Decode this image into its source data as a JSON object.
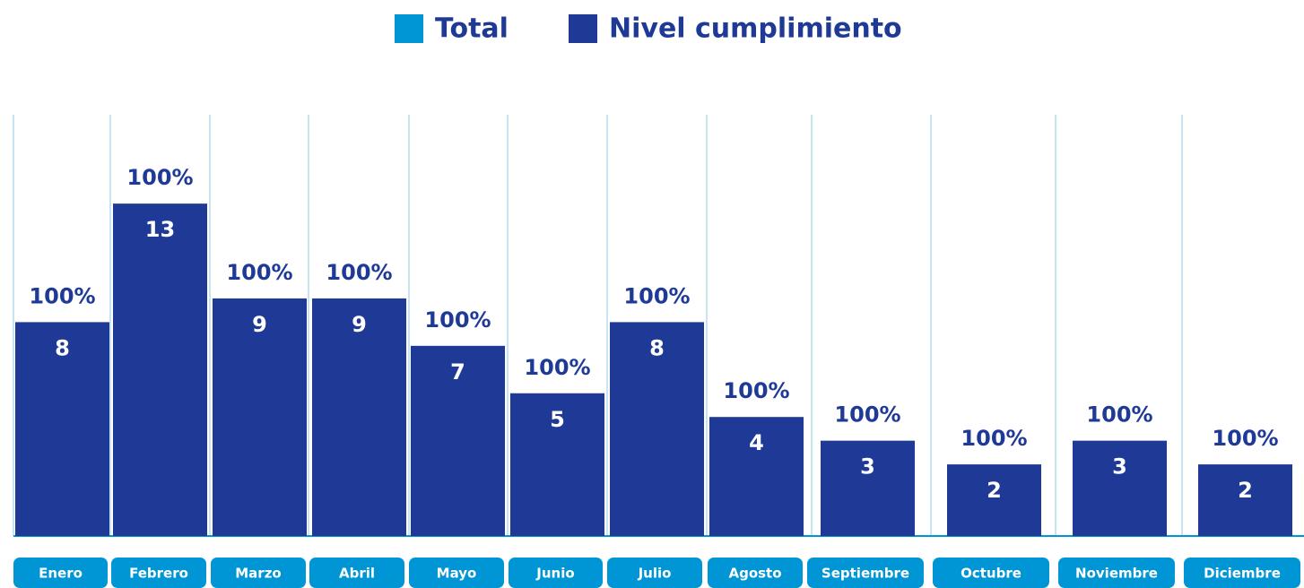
{
  "chart_data": {
    "type": "bar",
    "categories": [
      "Enero",
      "Febrero",
      "Marzo",
      "Abril",
      "Mayo",
      "Junio",
      "Julio",
      "Agosto",
      "Septiembre",
      "Octubre",
      "Noviembre",
      "Diciembre"
    ],
    "series": [
      {
        "name": "Total",
        "color": "#0095d5",
        "values": [
          8,
          13,
          9,
          9,
          7,
          5,
          8,
          4,
          3,
          2,
          3,
          2
        ]
      },
      {
        "name": "Nivel cumplimiento",
        "color": "#1e3a96",
        "values": [
          100,
          100,
          100,
          100,
          100,
          100,
          100,
          100,
          100,
          100,
          100,
          100
        ],
        "value_labels": [
          "100%",
          "100%",
          "100%",
          "100%",
          "100%",
          "100%",
          "100%",
          "100%",
          "100%",
          "100%",
          "100%",
          "100%"
        ]
      }
    ]
  }
}
